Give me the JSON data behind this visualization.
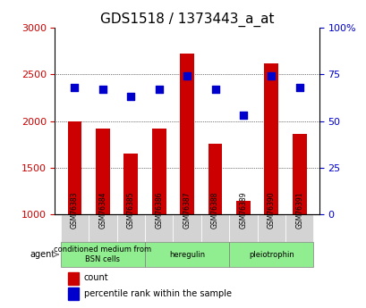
{
  "title": "GDS1518 / 1373443_a_at",
  "samples": [
    "GSM76383",
    "GSM76384",
    "GSM76385",
    "GSM76386",
    "GSM76387",
    "GSM76388",
    "GSM76389",
    "GSM76390",
    "GSM76391"
  ],
  "counts": [
    2000,
    1920,
    1650,
    1920,
    2720,
    1760,
    1140,
    2620,
    1860
  ],
  "percentiles": [
    68,
    67,
    63,
    67,
    74,
    67,
    53,
    74,
    68
  ],
  "ylim_left": [
    1000,
    3000
  ],
  "ylim_right": [
    0,
    100
  ],
  "yticks_left": [
    1000,
    1500,
    2000,
    2500,
    3000
  ],
  "yticks_right": [
    0,
    25,
    50,
    75,
    100
  ],
  "bar_color": "#cc0000",
  "dot_color": "#0000cc",
  "bar_bottom": 1000,
  "agent_groups": [
    {
      "label": "conditioned medium from\nBSN cells",
      "start": 0,
      "end": 3,
      "color": "#90ee90"
    },
    {
      "label": "heregulin",
      "start": 3,
      "end": 6,
      "color": "#90ee90"
    },
    {
      "label": "pleiotrophin",
      "start": 6,
      "end": 9,
      "color": "#90ee90"
    }
  ],
  "tick_bg_color": "#d3d3d3",
  "legend_count_color": "#cc0000",
  "legend_dot_color": "#0000cc",
  "ylabel_left_color": "#cc0000",
  "ylabel_right_color": "#0000cc",
  "grid_color": "#000000",
  "figsize": [
    4.1,
    3.45
  ],
  "dpi": 100
}
